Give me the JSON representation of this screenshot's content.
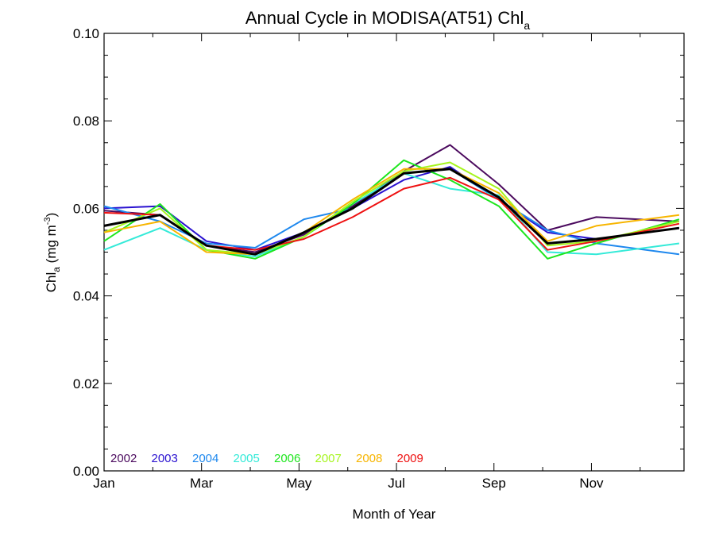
{
  "chart_data": {
    "type": "line",
    "title": {
      "main": "Annual Cycle in MODISA(AT51) Chl",
      "subscript": "a"
    },
    "xlabel": "Month of Year",
    "ylabel": {
      "prefix": "Chl",
      "subscript": "a",
      "mid": " (mg m",
      "superscript": "-3",
      "suffix": ")"
    },
    "xlim": [
      1,
      12.9
    ],
    "ylim": [
      0.0,
      0.1
    ],
    "x_ticks": [
      {
        "value": 1,
        "label": "Jan"
      },
      {
        "value": 3,
        "label": "Mar"
      },
      {
        "value": 5,
        "label": "May"
      },
      {
        "value": 7,
        "label": "Jul"
      },
      {
        "value": 9,
        "label": "Sep"
      },
      {
        "value": 11,
        "label": "Nov"
      }
    ],
    "y_ticks": [
      {
        "value": 0.0,
        "label": "0.00"
      },
      {
        "value": 0.02,
        "label": "0.02"
      },
      {
        "value": 0.04,
        "label": "0.04"
      },
      {
        "value": 0.06,
        "label": "0.06"
      },
      {
        "value": 0.08,
        "label": "0.08"
      },
      {
        "value": 0.1,
        "label": "0.10"
      }
    ],
    "x": [
      1,
      2.15,
      3.1,
      4.1,
      5.1,
      6.1,
      7.15,
      8.1,
      9.1,
      10.1,
      11.1,
      12.8
    ],
    "series": [
      {
        "name": "2002",
        "color": "#4b0a5e",
        "width": 2,
        "values": [
          0.0595,
          0.0585,
          0.0515,
          0.05,
          0.054,
          0.0605,
          0.0685,
          0.0745,
          0.0655,
          0.055,
          0.058,
          0.057
        ]
      },
      {
        "name": "2003",
        "color": "#2a12d0",
        "width": 2,
        "values": [
          0.06,
          0.0605,
          0.0525,
          0.0505,
          0.0545,
          0.06,
          0.0665,
          0.0695,
          0.062,
          0.0545,
          0.053,
          0.0555
        ]
      },
      {
        "name": "2004",
        "color": "#1e88ee",
        "width": 2,
        "values": [
          0.0605,
          0.057,
          0.052,
          0.051,
          0.0575,
          0.06,
          0.068,
          0.069,
          0.062,
          0.055,
          0.052,
          0.0495
        ]
      },
      {
        "name": "2005",
        "color": "#34ead8",
        "width": 2,
        "values": [
          0.0505,
          0.0555,
          0.0505,
          0.049,
          0.0535,
          0.061,
          0.068,
          0.0645,
          0.063,
          0.05,
          0.0495,
          0.052
        ]
      },
      {
        "name": "2006",
        "color": "#1ee61e",
        "width": 2,
        "values": [
          0.0525,
          0.061,
          0.0505,
          0.0485,
          0.0535,
          0.061,
          0.071,
          0.0665,
          0.0605,
          0.0485,
          0.052,
          0.0575
        ]
      },
      {
        "name": "2007",
        "color": "#a6f51e",
        "width": 2,
        "values": [
          0.0545,
          0.06,
          0.0505,
          0.0495,
          0.0535,
          0.0615,
          0.0685,
          0.0705,
          0.0645,
          0.0515,
          0.0525,
          0.057
        ]
      },
      {
        "name": "2008",
        "color": "#f7b500",
        "width": 2,
        "values": [
          0.0545,
          0.057,
          0.05,
          0.0495,
          0.0545,
          0.062,
          0.069,
          0.069,
          0.0635,
          0.0525,
          0.056,
          0.0585
        ]
      },
      {
        "name": "2009",
        "color": "#ee1010",
        "width": 2,
        "values": [
          0.059,
          0.0585,
          0.0515,
          0.0505,
          0.053,
          0.058,
          0.0645,
          0.067,
          0.062,
          0.0505,
          0.0525,
          0.0565
        ]
      },
      {
        "color": "#000000",
        "width": 3,
        "values": [
          0.056,
          0.0585,
          0.0515,
          0.0495,
          0.0545,
          0.06,
          0.068,
          0.069,
          0.0625,
          0.052,
          0.053,
          0.0555
        ]
      }
    ],
    "legend": {
      "placement": "bottom-left inside plot",
      "items": [
        {
          "label": "2002",
          "color": "#4b0a5e"
        },
        {
          "label": "2003",
          "color": "#2a12d0"
        },
        {
          "label": "2004",
          "color": "#1e88ee"
        },
        {
          "label": "2005",
          "color": "#34ead8"
        },
        {
          "label": "2006",
          "color": "#1ee61e"
        },
        {
          "label": "2007",
          "color": "#a6f51e"
        },
        {
          "label": "2008",
          "color": "#f7b500"
        },
        {
          "label": "2009",
          "color": "#ee1010"
        }
      ]
    },
    "grid": false
  }
}
